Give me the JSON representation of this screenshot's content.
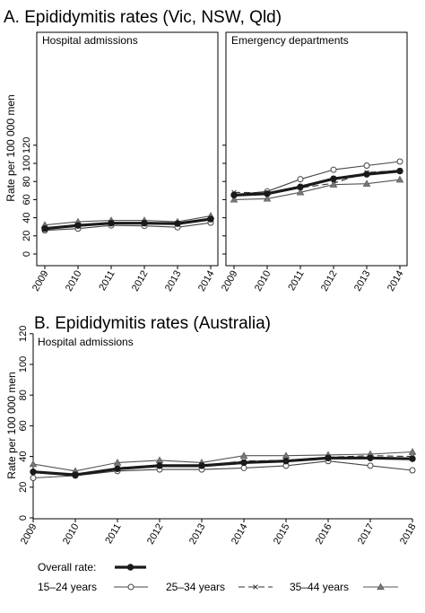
{
  "chart_data": [
    {
      "type": "line",
      "title": "A. Epididymitis rates (Vic, NSW, Qld)",
      "ylabel": "Rate per 100 000 men",
      "ylim": [
        0,
        120
      ],
      "yticks": [
        0,
        20,
        40,
        60,
        80,
        100,
        120
      ],
      "categories": [
        "2009",
        "2010",
        "2011",
        "2012",
        "2013",
        "2014"
      ],
      "grid": false,
      "facets": [
        {
          "label": "Hospital admissions",
          "series": [
            {
              "name": "Overall rate:",
              "values": [
                28,
                31.5,
                34,
                34,
                33.5,
                38.5
              ]
            },
            {
              "name": "15–24 years",
              "values": [
                26,
                28,
                31.5,
                31,
                29.5,
                34.5
              ]
            },
            {
              "name": "25–34 years",
              "values": [
                27,
                31,
                34,
                34,
                34,
                38
              ]
            },
            {
              "name": "35–44 years",
              "values": [
                32,
                35.5,
                37,
                37,
                35.5,
                42
              ]
            }
          ]
        },
        {
          "label": "Emergency departments",
          "series": [
            {
              "name": "Overall rate:",
              "values": [
                65,
                66.5,
                74,
                83,
                88,
                91.5
              ]
            },
            {
              "name": "15–24 years",
              "values": [
                65.5,
                69,
                82.5,
                93,
                97.5,
                102
              ]
            },
            {
              "name": "25–34 years",
              "values": [
                68,
                67.5,
                73,
                78,
                90,
                92
              ]
            },
            {
              "name": "35–44 years",
              "values": [
                60,
                61,
                68,
                76.5,
                77.5,
                82
              ]
            }
          ]
        }
      ]
    },
    {
      "type": "line",
      "title": "B. Epididymitis rates (Australia)",
      "ylabel": "Rate per 100 000 men",
      "ylim": [
        0,
        120
      ],
      "yticks": [
        0,
        20,
        40,
        60,
        80,
        100,
        120
      ],
      "categories": [
        "2009",
        "2010",
        "2011",
        "2012",
        "2013",
        "2014",
        "2015",
        "2016",
        "2017",
        "2018"
      ],
      "grid": false,
      "facets": [
        {
          "label": "Hospital admissions",
          "series": [
            {
              "name": "Overall rate:",
              "values": [
                30,
                28,
                32,
                34,
                34,
                36,
                37,
                39,
                39,
                38.5
              ]
            },
            {
              "name": "15–24 years",
              "values": [
                26,
                27.5,
                30.5,
                31.5,
                31.5,
                32.5,
                34,
                37,
                34,
                31
              ]
            },
            {
              "name": "25–34 years",
              "values": [
                30,
                28,
                32.5,
                34.5,
                34,
                37,
                37.5,
                39.5,
                40.5,
                40
              ]
            },
            {
              "name": "35–44 years",
              "values": [
                35,
                30.5,
                36,
                37.5,
                36,
                40.5,
                40.5,
                41,
                41.5,
                43
              ]
            }
          ]
        }
      ]
    }
  ],
  "legend": [
    {
      "label": "Overall rate:",
      "style": "overall"
    },
    {
      "label": "15–24 years",
      "style": "15-24"
    },
    {
      "label": "25–34 years",
      "style": "25-34"
    },
    {
      "label": "35–44 years",
      "style": "35-44"
    }
  ],
  "styles": {
    "overall": {
      "color": "#1a1a1a",
      "width": 3.2,
      "marker": "filled-circle",
      "dash": ""
    },
    "15-24": {
      "color": "#444444",
      "width": 1.1,
      "marker": "open-circle",
      "dash": ""
    },
    "25-34": {
      "color": "#333333",
      "width": 1.1,
      "marker": "x",
      "dash": "7 4"
    },
    "35-44": {
      "color": "#555555",
      "width": 1.1,
      "marker": "filled-triangle",
      "dash": ""
    }
  }
}
